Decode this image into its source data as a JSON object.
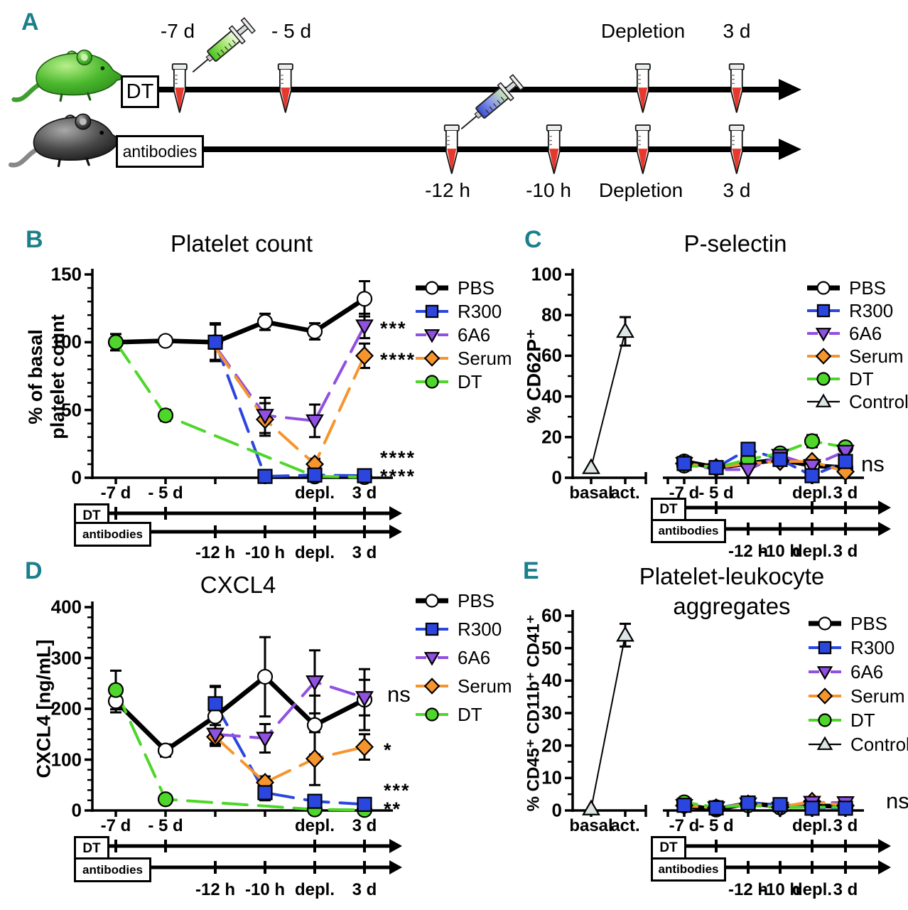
{
  "figure": {
    "background": "#ffffff",
    "panel_letter_color": "#1b7f8b"
  },
  "palette": {
    "pbs_line": "#000000",
    "pbs_fill": "#ffffff",
    "r300": "#2b46df",
    "a6a6": "#9050e0",
    "serum": "#f6952e",
    "dt": "#4fd62a",
    "control_fill": "#dce6e6",
    "tube_red": "#e8372c",
    "syringe_green": "#8ade55",
    "syringe_blue": "#7d8fe8"
  },
  "panel_a": {
    "label": "A",
    "icons": [
      "green-mouse-icon",
      "black-mouse-icon",
      "green-syringe-icon",
      "blue-syringe-icon",
      "blood-tube-icon"
    ],
    "dt_timeline": {
      "box": "DT",
      "labels": [
        "-7 d",
        "- 5 d",
        "Depletion",
        "3 d"
      ]
    },
    "antibodies_timeline": {
      "box": "antibodies",
      "labels": [
        "-12 h",
        "-10 h",
        "Depletion",
        "3 d"
      ]
    }
  },
  "timeline_template": {
    "dt_label": "DT",
    "antibodies_label": "antibodies",
    "antibodies_tick_labels": [
      "-12 h",
      "-10 h",
      "depl.",
      "3 d"
    ]
  },
  "chart_data": [
    {
      "panel": "B",
      "type": "line",
      "title": "Platelet count",
      "ylabel": "% of basal platelet count",
      "ylabel_lines": [
        "% of basal",
        "platelet count"
      ],
      "ylim": [
        0,
        150
      ],
      "yticks": [
        0,
        50,
        100,
        150
      ],
      "y_minor_step": 10,
      "categories": [
        "-7 d",
        "- 5 d",
        "-12 h",
        "-10 h",
        "depl.",
        "3 d"
      ],
      "xtick_labels": [
        "-7 d",
        "- 5 d",
        "",
        "",
        "depl.",
        "3 d"
      ],
      "series": [
        {
          "name": "PBS",
          "marker": "circle",
          "x": [
            0,
            1,
            2,
            3,
            4,
            5
          ],
          "y": [
            100,
            101,
            100,
            115,
            108,
            132
          ],
          "err": [
            6,
            3,
            13,
            6,
            6,
            13
          ]
        },
        {
          "name": "R300",
          "marker": "square",
          "x": [
            2,
            3,
            4,
            5
          ],
          "y": [
            100,
            1,
            2,
            1.5
          ],
          "err": [
            14,
            0,
            0,
            0
          ]
        },
        {
          "name": "6A6",
          "marker": "triangle-down",
          "x": [
            2,
            3,
            4,
            5
          ],
          "y": [
            97,
            46,
            42,
            112
          ],
          "err": [
            0,
            13,
            12,
            9
          ],
          "nomark": [
            0
          ]
        },
        {
          "name": "Serum",
          "marker": "diamond",
          "x": [
            2,
            3,
            4,
            5
          ],
          "y": [
            96,
            43,
            10,
            90
          ],
          "err": [
            0,
            12,
            4,
            9
          ],
          "nomark": [
            0
          ]
        },
        {
          "name": "DT",
          "marker": "circle",
          "x": [
            0,
            1,
            4,
            5
          ],
          "y": [
            100,
            46,
            1,
            0.5
          ],
          "err": [
            6,
            4,
            0,
            2
          ]
        }
      ],
      "annotations": [
        {
          "text": "***",
          "xi": 5,
          "y": 112,
          "dx": 22,
          "style": "stars"
        },
        {
          "text": "****",
          "xi": 5,
          "y": 89,
          "dx": 22,
          "style": "stars"
        },
        {
          "text": "****",
          "xi": 5,
          "y": 17,
          "dx": 22,
          "style": "stars"
        },
        {
          "text": "****",
          "xi": 5,
          "y": 3,
          "dx": 22,
          "style": "stars"
        }
      ],
      "legend": [
        "PBS",
        "R300",
        "6A6",
        "Serum",
        "DT"
      ]
    },
    {
      "panel": "C",
      "type": "line",
      "title": "P-selectin",
      "ylabel": "% CD62P⁺",
      "ylim": [
        0,
        100
      ],
      "yticks": [
        0,
        20,
        40,
        60,
        80,
        100
      ],
      "y_minor_step": 10,
      "mini": {
        "categories": [
          "basal",
          "act."
        ],
        "series": {
          "name": "Control",
          "marker": "triangle-up",
          "y": [
            5,
            72
          ],
          "err": [
            0,
            7
          ]
        }
      },
      "categories": [
        "-7 d",
        "- 5 d",
        "-12 h",
        "-10 h",
        "depl.",
        "3 d"
      ],
      "xtick_labels": [
        "-7 d",
        "- 5 d",
        "",
        "",
        "depl.",
        "3 d"
      ],
      "series": [
        {
          "name": "PBS",
          "marker": "circle",
          "x": [
            0,
            1,
            2,
            3,
            4,
            5
          ],
          "y": [
            8,
            5,
            7,
            9,
            6,
            5
          ],
          "err": [
            0,
            0,
            0,
            0,
            0,
            0
          ]
        },
        {
          "name": "R300",
          "marker": "square",
          "x": [
            0,
            1,
            2,
            3,
            4,
            5
          ],
          "y": [
            7,
            5,
            14,
            9,
            1,
            8
          ],
          "err": [
            0,
            0,
            0,
            0,
            0,
            0
          ]
        },
        {
          "name": "6A6",
          "marker": "triangle-down",
          "x": [
            0,
            1,
            2,
            3,
            4,
            5
          ],
          "y": [
            7,
            4,
            4,
            11,
            6,
            13
          ],
          "err": [
            0,
            0,
            0,
            0,
            0,
            0
          ]
        },
        {
          "name": "Serum",
          "marker": "diamond",
          "x": [
            0,
            1,
            2,
            3,
            4,
            5
          ],
          "y": [
            7,
            5,
            7,
            8,
            8,
            3
          ],
          "err": [
            0,
            0,
            0,
            0,
            0,
            0
          ]
        },
        {
          "name": "DT",
          "marker": "circle",
          "x": [
            0,
            1,
            2,
            3,
            4,
            5
          ],
          "y": [
            6,
            5,
            9,
            12,
            18,
            15
          ],
          "err": [
            0,
            0,
            0,
            0,
            3,
            2
          ]
        }
      ],
      "annotations": [
        {
          "text": "ns",
          "xi": 5,
          "y": 6,
          "dx": 22,
          "style": "ns"
        }
      ],
      "legend": [
        "PBS",
        "R300",
        "6A6",
        "Serum",
        "DT",
        "Control"
      ]
    },
    {
      "panel": "D",
      "type": "line",
      "title": "CXCL4",
      "ylabel": "CXCL4 [ng/mL]",
      "ylim": [
        0,
        400
      ],
      "yticks": [
        0,
        100,
        200,
        300,
        400
      ],
      "y_minor_step": 20,
      "categories": [
        "-7 d",
        "- 5 d",
        "-12 h",
        "-10 h",
        "depl.",
        "3 d"
      ],
      "xtick_labels": [
        "-7 d",
        "- 5 d",
        "",
        "",
        "depl.",
        "3 d"
      ],
      "series": [
        {
          "name": "PBS",
          "marker": "circle",
          "x": [
            0,
            1,
            2,
            3,
            4,
            5
          ],
          "y": [
            215,
            118,
            185,
            263,
            168,
            218
          ],
          "err": [
            22,
            12,
            58,
            78,
            58,
            60
          ]
        },
        {
          "name": "R300",
          "marker": "square",
          "x": [
            2,
            3,
            4,
            5
          ],
          "y": [
            210,
            35,
            18,
            12
          ],
          "err": [
            35,
            15,
            12,
            8
          ]
        },
        {
          "name": "6A6",
          "marker": "triangle-down",
          "x": [
            2,
            3,
            4,
            5
          ],
          "y": [
            150,
            142,
            253,
            222
          ],
          "err": [
            18,
            28,
            62,
            35
          ]
        },
        {
          "name": "Serum",
          "marker": "diamond",
          "x": [
            2,
            3,
            4,
            5
          ],
          "y": [
            145,
            55,
            102,
            125
          ],
          "err": [
            15,
            12,
            52,
            25
          ]
        },
        {
          "name": "DT",
          "marker": "circle",
          "x": [
            0,
            1,
            4,
            5
          ],
          "y": [
            237,
            22,
            2,
            1
          ],
          "err": [
            38,
            8,
            0,
            0
          ]
        }
      ],
      "annotations": [
        {
          "text": "ns",
          "xi": 5,
          "y": 225,
          "dx": 32,
          "style": "ns"
        },
        {
          "text": "*",
          "xi": 5,
          "y": 125,
          "dx": 27,
          "style": "stars"
        },
        {
          "text": "***",
          "xi": 5,
          "y": 45,
          "dx": 27,
          "style": "stars"
        },
        {
          "text": "**",
          "xi": 5,
          "y": 8,
          "dx": 27,
          "style": "stars"
        }
      ],
      "legend": [
        "PBS",
        "R300",
        "6A6",
        "Serum",
        "DT"
      ]
    },
    {
      "panel": "E",
      "type": "line",
      "title": "Platelet-leukocyte aggregates",
      "title_lines": [
        "Platelet-leukocyte",
        "aggregates"
      ],
      "ylabel": "% CD45⁺ CD11b⁺ CD41⁺",
      "ylim": [
        0,
        60
      ],
      "yticks": [
        0,
        10,
        20,
        30,
        40,
        50,
        60
      ],
      "y_minor_step": 5,
      "mini": {
        "categories": [
          "basal",
          "act."
        ],
        "series": {
          "name": "Control",
          "marker": "triangle-up",
          "y": [
            0.5,
            54
          ],
          "err": [
            0,
            3.5
          ]
        }
      },
      "categories": [
        "-7 d",
        "- 5 d",
        "-12 h",
        "-10 h",
        "depl.",
        "3 d"
      ],
      "xtick_labels": [
        "-7 d",
        "- 5 d",
        "",
        "",
        "depl.",
        "3 d"
      ],
      "series": [
        {
          "name": "PBS",
          "marker": "circle",
          "x": [
            0,
            1,
            2,
            3,
            4,
            5
          ],
          "y": [
            1.5,
            0.3,
            2.2,
            1.3,
            1.5,
            1.2
          ],
          "err": [
            0,
            0,
            0,
            0,
            0,
            0
          ]
        },
        {
          "name": "R300",
          "marker": "square",
          "x": [
            0,
            1,
            2,
            3,
            4,
            5
          ],
          "y": [
            1.6,
            0.8,
            2.3,
            1.8,
            0.7,
            0.7
          ],
          "err": [
            0,
            0,
            0,
            0,
            0,
            0
          ]
        },
        {
          "name": "6A6",
          "marker": "triangle-down",
          "x": [
            0,
            1,
            2,
            3,
            4,
            5
          ],
          "y": [
            1.5,
            0.8,
            2,
            0.7,
            2.5,
            2.4
          ],
          "err": [
            0,
            0,
            0,
            0,
            0,
            0
          ]
        },
        {
          "name": "Serum",
          "marker": "diamond",
          "x": [
            0,
            1,
            2,
            3,
            4,
            5
          ],
          "y": [
            1.5,
            0.8,
            2,
            1,
            2.8,
            1.5
          ],
          "err": [
            0,
            0,
            0,
            0,
            0,
            0
          ]
        },
        {
          "name": "DT",
          "marker": "circle",
          "x": [
            0,
            1,
            2,
            3,
            4,
            5
          ],
          "y": [
            2.5,
            1,
            1.6,
            0.9,
            1,
            1
          ],
          "err": [
            0,
            0,
            0,
            0,
            0,
            0
          ]
        }
      ],
      "annotations": [
        {
          "text": "ns",
          "xi": 5,
          "y": 2.5,
          "dx": 57,
          "style": "ns"
        }
      ],
      "legend": [
        "PBS",
        "R300",
        "6A6",
        "Serum",
        "DT",
        "Control"
      ]
    }
  ]
}
